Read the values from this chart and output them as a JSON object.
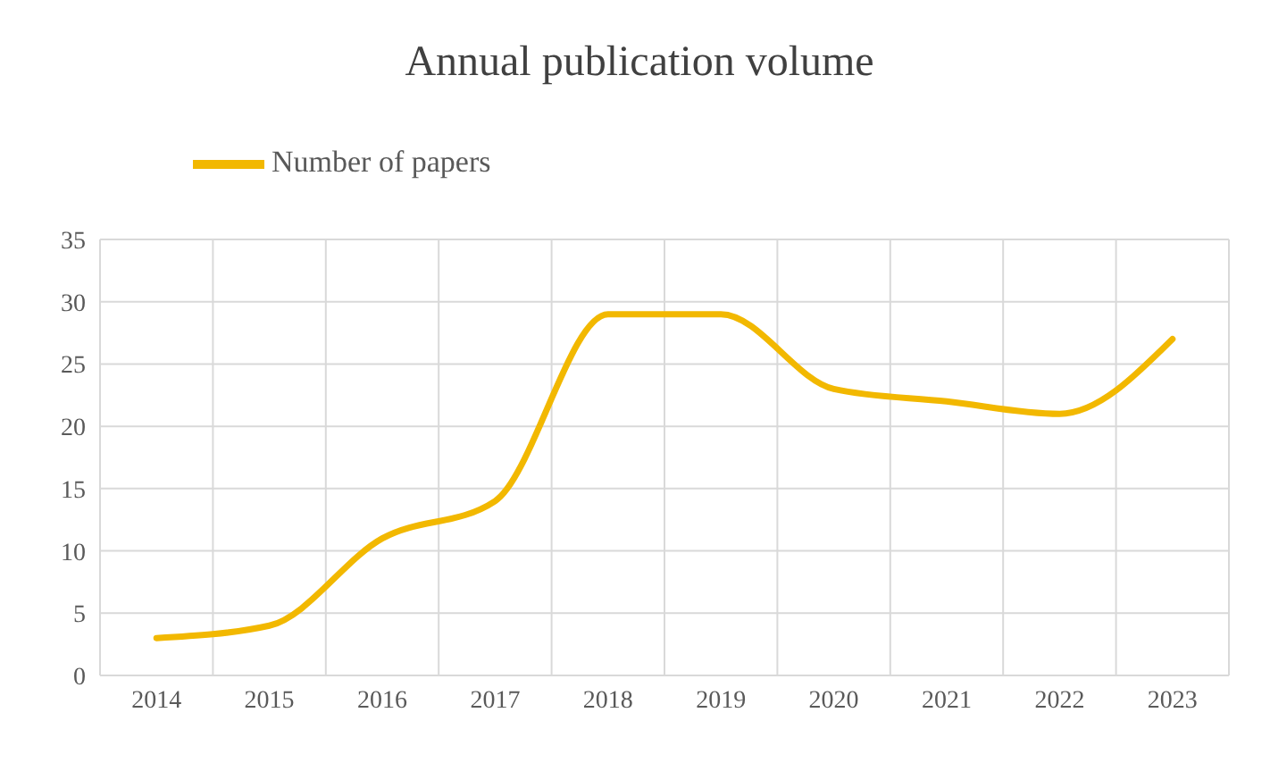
{
  "chart_data": {
    "type": "line",
    "title": "Annual publication volume",
    "categories": [
      "2014",
      "2015",
      "2016",
      "2017",
      "2018",
      "2019",
      "2020",
      "2021",
      "2022",
      "2023"
    ],
    "series": [
      {
        "name": "Number of papers",
        "color": "#f2b800",
        "values": [
          3,
          4,
          11,
          14,
          29,
          29,
          23,
          22,
          21,
          27
        ]
      }
    ],
    "ylim": [
      0,
      35
    ],
    "yticks": [
      0,
      5,
      10,
      15,
      20,
      25,
      30,
      35
    ],
    "grid": true,
    "legend": "top left",
    "marker": "none",
    "line_style": "solid"
  }
}
